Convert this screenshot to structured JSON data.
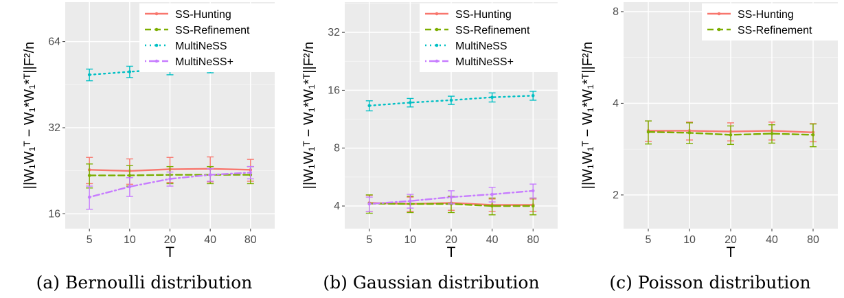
{
  "colors": {
    "panel_bg": "#ebebeb",
    "grid": "#ffffff",
    "SS-Hunting": "#f8766d",
    "SS-Refinement": "#7cae00",
    "MultiNeSS": "#00bfc4",
    "MultiNeSS+": "#c77cff"
  },
  "y_axis_label": "||W₁W₁ᵀ − W₁*W₁*ᵀ||F²/n",
  "chart_data": [
    {
      "type": "line",
      "caption": "(a) Bernoulli distribution",
      "xlabel": "T",
      "x": [
        5,
        10,
        20,
        40,
        80
      ],
      "y_scale": "log2",
      "ylim": [
        14.2,
        88
      ],
      "yticks": [
        16,
        32,
        64
      ],
      "grid": true,
      "legend_position": "top-right",
      "series": [
        {
          "name": "SS-Hunting",
          "values": [
            22.8,
            22.6,
            22.9,
            23.0,
            22.8
          ],
          "err": [
            2.4,
            2.3,
            2.3,
            2.3,
            2.0
          ],
          "dash": "solid"
        },
        {
          "name": "SS-Refinement",
          "values": [
            21.8,
            21.8,
            21.9,
            21.9,
            21.9
          ],
          "err": [
            2.1,
            1.8,
            1.5,
            1.5,
            1.5
          ],
          "dash": "dashed"
        },
        {
          "name": "MultiNeSS",
          "values": [
            49.0,
            50.2,
            51.3,
            52.1,
            53.2
          ],
          "err": [
            2.3,
            2.3,
            2.3,
            2.3,
            2.3
          ],
          "dash": "dotted"
        },
        {
          "name": "MultiNeSS+",
          "values": [
            18.3,
            19.9,
            21.2,
            21.9,
            22.3
          ],
          "err": [
            1.7,
            1.5,
            1.2,
            1.1,
            1.1
          ],
          "dash": "dotdash"
        }
      ]
    },
    {
      "type": "line",
      "caption": "(b) Gaussian distribution",
      "xlabel": "T",
      "x": [
        5,
        10,
        20,
        40,
        80
      ],
      "y_scale": "log2",
      "ylim": [
        3.05,
        46
      ],
      "yticks": [
        4,
        8,
        16,
        32
      ],
      "grid": true,
      "legend_position": "top-right",
      "series": [
        {
          "name": "SS-Hunting",
          "values": [
            4.15,
            4.1,
            4.15,
            4.05,
            4.05
          ],
          "err": [
            0.4,
            0.35,
            0.35,
            0.3,
            0.3
          ],
          "dash": "solid"
        },
        {
          "name": "SS-Refinement",
          "values": [
            4.12,
            4.1,
            4.1,
            4.0,
            4.0
          ],
          "err": [
            0.45,
            0.4,
            0.4,
            0.4,
            0.4
          ],
          "dash": "dashed"
        },
        {
          "name": "MultiNeSS",
          "values": [
            13.3,
            13.8,
            14.2,
            14.7,
            15.0
          ],
          "err": [
            0.8,
            0.7,
            0.7,
            0.8,
            0.8
          ],
          "dash": "dotted"
        },
        {
          "name": "MultiNeSS+",
          "values": [
            4.1,
            4.25,
            4.45,
            4.6,
            4.8
          ],
          "err": [
            0.35,
            0.35,
            0.35,
            0.4,
            0.4
          ],
          "dash": "dotdash"
        }
      ]
    },
    {
      "type": "line",
      "caption": "(c) Poisson distribution",
      "xlabel": "T",
      "x": [
        5,
        10,
        20,
        40,
        80
      ],
      "y_scale": "log2",
      "ylim": [
        1.55,
        8.6
      ],
      "yticks": [
        2,
        4,
        8
      ],
      "grid": true,
      "legend_position": "top-right",
      "series": [
        {
          "name": "SS-Hunting",
          "values": [
            3.25,
            3.25,
            3.23,
            3.25,
            3.21
          ],
          "err": [
            0.25,
            0.22,
            0.22,
            0.22,
            0.22
          ],
          "dash": "solid"
        },
        {
          "name": "SS-Refinement",
          "values": [
            3.22,
            3.2,
            3.15,
            3.18,
            3.15
          ],
          "err": [
            0.28,
            0.25,
            0.22,
            0.22,
            0.27
          ],
          "dash": "dashed"
        }
      ]
    }
  ]
}
